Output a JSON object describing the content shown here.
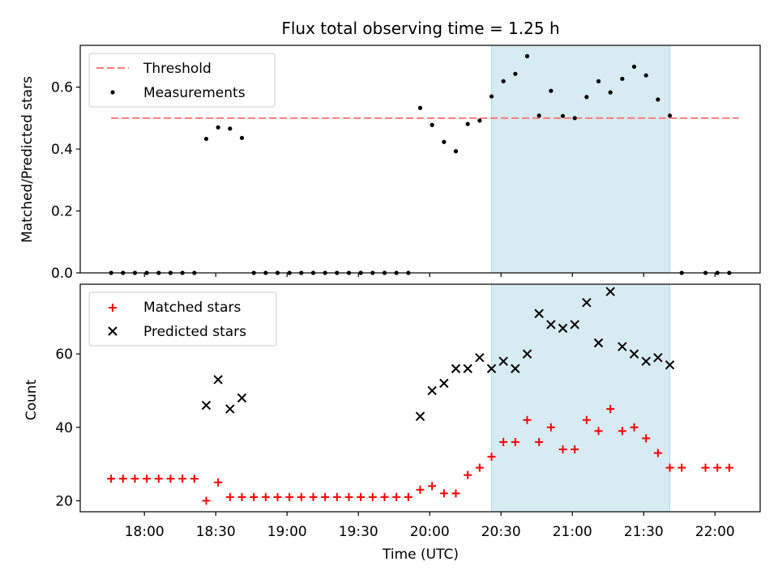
{
  "title": "Flux total observing time = 1.25 h",
  "colors": {
    "threshold": "#ff7b7b",
    "measurement": "#000000",
    "matched": "#ff0000",
    "predicted": "#000000",
    "window_fill": "#add8e6"
  },
  "chart_data": [
    {
      "type": "scatter",
      "ylabel": "Matched/Predicted stars",
      "ylim": [
        0,
        0.735
      ],
      "yticks": [
        0.0,
        0.2,
        0.4,
        0.6
      ],
      "ytick_labels": [
        "0.0",
        "0.2",
        "0.4",
        "0.6"
      ],
      "legend": [
        "Threshold",
        "Measurements"
      ],
      "legend_position": "top-left",
      "threshold": {
        "name": "Threshold",
        "value": 0.5,
        "x_start": "17:46",
        "x_end": "22:10"
      },
      "highlight_window": {
        "start": "20:26",
        "end": "21:41"
      },
      "series": [
        {
          "name": "Measurements",
          "marker": "dot",
          "points": [
            [
              "17:46",
              0
            ],
            [
              "17:51",
              0
            ],
            [
              "17:56",
              0
            ],
            [
              "18:01",
              0
            ],
            [
              "18:06",
              0
            ],
            [
              "18:11",
              0
            ],
            [
              "18:16",
              0
            ],
            [
              "18:21",
              0
            ],
            [
              "18:26",
              0.433
            ],
            [
              "18:31",
              0.47
            ],
            [
              "18:36",
              0.466
            ],
            [
              "18:41",
              0.436
            ],
            [
              "18:46",
              0
            ],
            [
              "18:51",
              0
            ],
            [
              "18:56",
              0
            ],
            [
              "19:01",
              0
            ],
            [
              "19:06",
              0
            ],
            [
              "19:11",
              0
            ],
            [
              "19:16",
              0
            ],
            [
              "19:21",
              0
            ],
            [
              "19:26",
              0
            ],
            [
              "19:31",
              0
            ],
            [
              "19:36",
              0
            ],
            [
              "19:41",
              0
            ],
            [
              "19:46",
              0
            ],
            [
              "19:51",
              0
            ],
            [
              "19:56",
              0.533
            ],
            [
              "20:01",
              0.478
            ],
            [
              "20:06",
              0.423
            ],
            [
              "20:11",
              0.393
            ],
            [
              "20:16",
              0.481
            ],
            [
              "20:21",
              0.492
            ],
            [
              "20:26",
              0.57
            ],
            [
              "20:31",
              0.619
            ],
            [
              "20:36",
              0.643
            ],
            [
              "20:41",
              0.7
            ],
            [
              "20:46",
              0.508
            ],
            [
              "20:51",
              0.588
            ],
            [
              "20:56",
              0.507
            ],
            [
              "21:01",
              0.5
            ],
            [
              "21:06",
              0.568
            ],
            [
              "21:11",
              0.619
            ],
            [
              "21:16",
              0.583
            ],
            [
              "21:21",
              0.627
            ],
            [
              "21:26",
              0.666
            ],
            [
              "21:31",
              0.638
            ],
            [
              "21:36",
              0.56
            ],
            [
              "21:41",
              0.508
            ],
            [
              "21:46",
              0
            ],
            [
              "21:56",
              0
            ],
            [
              "22:01",
              0
            ],
            [
              "22:06",
              0
            ]
          ]
        }
      ]
    },
    {
      "type": "scatter",
      "xlabel": "Time (UTC)",
      "ylabel": "Count",
      "ylim": [
        17,
        79
      ],
      "yticks": [
        20,
        40,
        60
      ],
      "ytick_labels": [
        "20",
        "40",
        "60"
      ],
      "xticks": [
        "18:00",
        "18:30",
        "19:00",
        "19:30",
        "20:00",
        "20:30",
        "21:00",
        "21:30",
        "22:00"
      ],
      "legend": [
        "Matched stars",
        "Predicted stars"
      ],
      "legend_position": "top-left",
      "highlight_window": {
        "start": "20:26",
        "end": "21:41"
      },
      "series": [
        {
          "name": "Matched stars",
          "marker": "plus",
          "points": [
            [
              "17:46",
              26
            ],
            [
              "17:51",
              26
            ],
            [
              "17:56",
              26
            ],
            [
              "18:01",
              26
            ],
            [
              "18:06",
              26
            ],
            [
              "18:11",
              26
            ],
            [
              "18:16",
              26
            ],
            [
              "18:21",
              26
            ],
            [
              "18:26",
              20
            ],
            [
              "18:31",
              25
            ],
            [
              "18:36",
              21
            ],
            [
              "18:41",
              21
            ],
            [
              "18:46",
              21
            ],
            [
              "18:51",
              21
            ],
            [
              "18:56",
              21
            ],
            [
              "19:01",
              21
            ],
            [
              "19:06",
              21
            ],
            [
              "19:11",
              21
            ],
            [
              "19:16",
              21
            ],
            [
              "19:21",
              21
            ],
            [
              "19:26",
              21
            ],
            [
              "19:31",
              21
            ],
            [
              "19:36",
              21
            ],
            [
              "19:41",
              21
            ],
            [
              "19:46",
              21
            ],
            [
              "19:51",
              21
            ],
            [
              "19:56",
              23
            ],
            [
              "20:01",
              24
            ],
            [
              "20:06",
              22
            ],
            [
              "20:11",
              22
            ],
            [
              "20:16",
              27
            ],
            [
              "20:21",
              29
            ],
            [
              "20:26",
              32
            ],
            [
              "20:31",
              36
            ],
            [
              "20:36",
              36
            ],
            [
              "20:41",
              42
            ],
            [
              "20:46",
              36
            ],
            [
              "20:51",
              40
            ],
            [
              "20:56",
              34
            ],
            [
              "21:01",
              34
            ],
            [
              "21:06",
              42
            ],
            [
              "21:11",
              39
            ],
            [
              "21:16",
              45
            ],
            [
              "21:21",
              39
            ],
            [
              "21:26",
              40
            ],
            [
              "21:31",
              37
            ],
            [
              "21:36",
              33
            ],
            [
              "21:41",
              29
            ],
            [
              "21:46",
              29
            ],
            [
              "21:56",
              29
            ],
            [
              "22:01",
              29
            ],
            [
              "22:06",
              29
            ]
          ]
        },
        {
          "name": "Predicted stars",
          "marker": "x",
          "points": [
            [
              "18:26",
              46
            ],
            [
              "18:31",
              53
            ],
            [
              "18:36",
              45
            ],
            [
              "18:41",
              48
            ],
            [
              "19:56",
              43
            ],
            [
              "20:01",
              50
            ],
            [
              "20:06",
              52
            ],
            [
              "20:11",
              56
            ],
            [
              "20:16",
              56
            ],
            [
              "20:21",
              59
            ],
            [
              "20:26",
              56
            ],
            [
              "20:31",
              58
            ],
            [
              "20:36",
              56
            ],
            [
              "20:41",
              60
            ],
            [
              "20:46",
              71
            ],
            [
              "20:51",
              68
            ],
            [
              "20:56",
              67
            ],
            [
              "21:01",
              68
            ],
            [
              "21:06",
              74
            ],
            [
              "21:11",
              63
            ],
            [
              "21:16",
              77
            ],
            [
              "21:21",
              62
            ],
            [
              "21:26",
              60
            ],
            [
              "21:31",
              58
            ],
            [
              "21:36",
              59
            ],
            [
              "21:41",
              57
            ]
          ]
        }
      ]
    }
  ]
}
